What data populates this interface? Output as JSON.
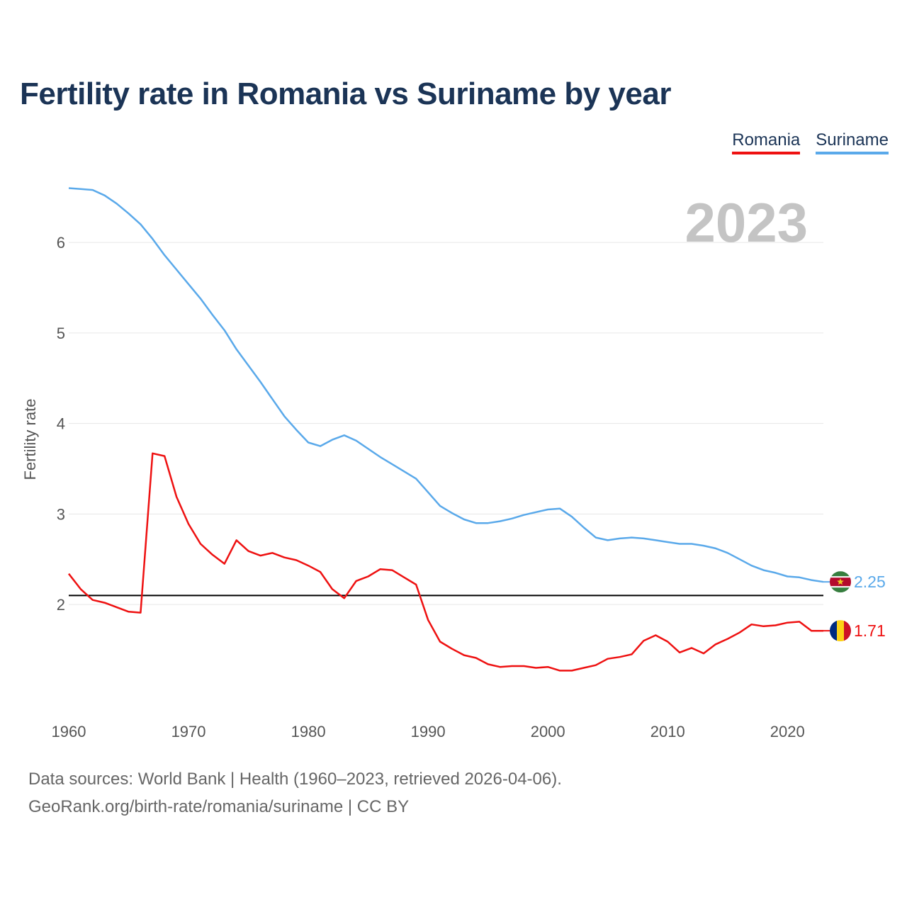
{
  "title": "Fertility rate in Romania vs Suriname by year",
  "legend": [
    {
      "name": "Romania",
      "color": "#ee1111"
    },
    {
      "name": "Suriname",
      "color": "#5aa9ea"
    }
  ],
  "footer": {
    "sources": "Data sources: World Bank | Health (1960–2023, retrieved 2026-04-06).",
    "credit": "GeoRank.org/birth-rate/romania/suriname | CC BY"
  },
  "chart_data": {
    "type": "line",
    "title": "Fertility rate in Romania vs Suriname by year",
    "year_label": "2023",
    "xlabel": "",
    "ylabel": "Fertility rate",
    "xlim": [
      1960,
      2023
    ],
    "ylim": [
      0.85,
      6.8
    ],
    "x_ticks": [
      1960,
      1970,
      1980,
      1990,
      2000,
      2010,
      2020
    ],
    "y_ticks": [
      2,
      3,
      4,
      5,
      6
    ],
    "reference_line": 2.1,
    "grid": true,
    "x": [
      1960,
      1961,
      1962,
      1963,
      1964,
      1965,
      1966,
      1967,
      1968,
      1969,
      1970,
      1971,
      1972,
      1973,
      1974,
      1975,
      1976,
      1977,
      1978,
      1979,
      1980,
      1981,
      1982,
      1983,
      1984,
      1985,
      1986,
      1987,
      1988,
      1989,
      1990,
      1991,
      1992,
      1993,
      1994,
      1995,
      1996,
      1997,
      1998,
      1999,
      2000,
      2001,
      2002,
      2003,
      2004,
      2005,
      2006,
      2007,
      2008,
      2009,
      2010,
      2011,
      2012,
      2013,
      2014,
      2015,
      2016,
      2017,
      2018,
      2019,
      2020,
      2021,
      2022,
      2023
    ],
    "series": [
      {
        "name": "Romania",
        "color": "#ee1111",
        "end_label": "1.71",
        "values": [
          2.34,
          2.17,
          2.05,
          2.02,
          1.97,
          1.92,
          1.91,
          3.67,
          3.64,
          3.19,
          2.89,
          2.67,
          2.55,
          2.45,
          2.71,
          2.59,
          2.54,
          2.57,
          2.52,
          2.49,
          2.43,
          2.36,
          2.17,
          2.07,
          2.26,
          2.31,
          2.39,
          2.38,
          2.3,
          2.22,
          1.83,
          1.59,
          1.51,
          1.44,
          1.41,
          1.34,
          1.31,
          1.32,
          1.32,
          1.3,
          1.31,
          1.27,
          1.27,
          1.3,
          1.33,
          1.4,
          1.42,
          1.45,
          1.6,
          1.66,
          1.59,
          1.47,
          1.52,
          1.46,
          1.56,
          1.62,
          1.69,
          1.78,
          1.76,
          1.77,
          1.8,
          1.81,
          1.71,
          1.71
        ]
      },
      {
        "name": "Suriname",
        "color": "#5aa9ea",
        "end_label": "2.25",
        "values": [
          6.6,
          6.59,
          6.58,
          6.52,
          6.43,
          6.32,
          6.2,
          6.04,
          5.86,
          5.7,
          5.54,
          5.38,
          5.2,
          5.03,
          4.82,
          4.64,
          4.46,
          4.27,
          4.08,
          3.93,
          3.79,
          3.75,
          3.82,
          3.87,
          3.81,
          3.72,
          3.63,
          3.55,
          3.47,
          3.39,
          3.24,
          3.09,
          3.01,
          2.94,
          2.9,
          2.9,
          2.92,
          2.95,
          2.99,
          3.02,
          3.05,
          3.06,
          2.97,
          2.85,
          2.74,
          2.71,
          2.73,
          2.74,
          2.73,
          2.71,
          2.69,
          2.67,
          2.67,
          2.65,
          2.62,
          2.57,
          2.5,
          2.43,
          2.38,
          2.35,
          2.31,
          2.3,
          2.27,
          2.25
        ]
      }
    ]
  }
}
